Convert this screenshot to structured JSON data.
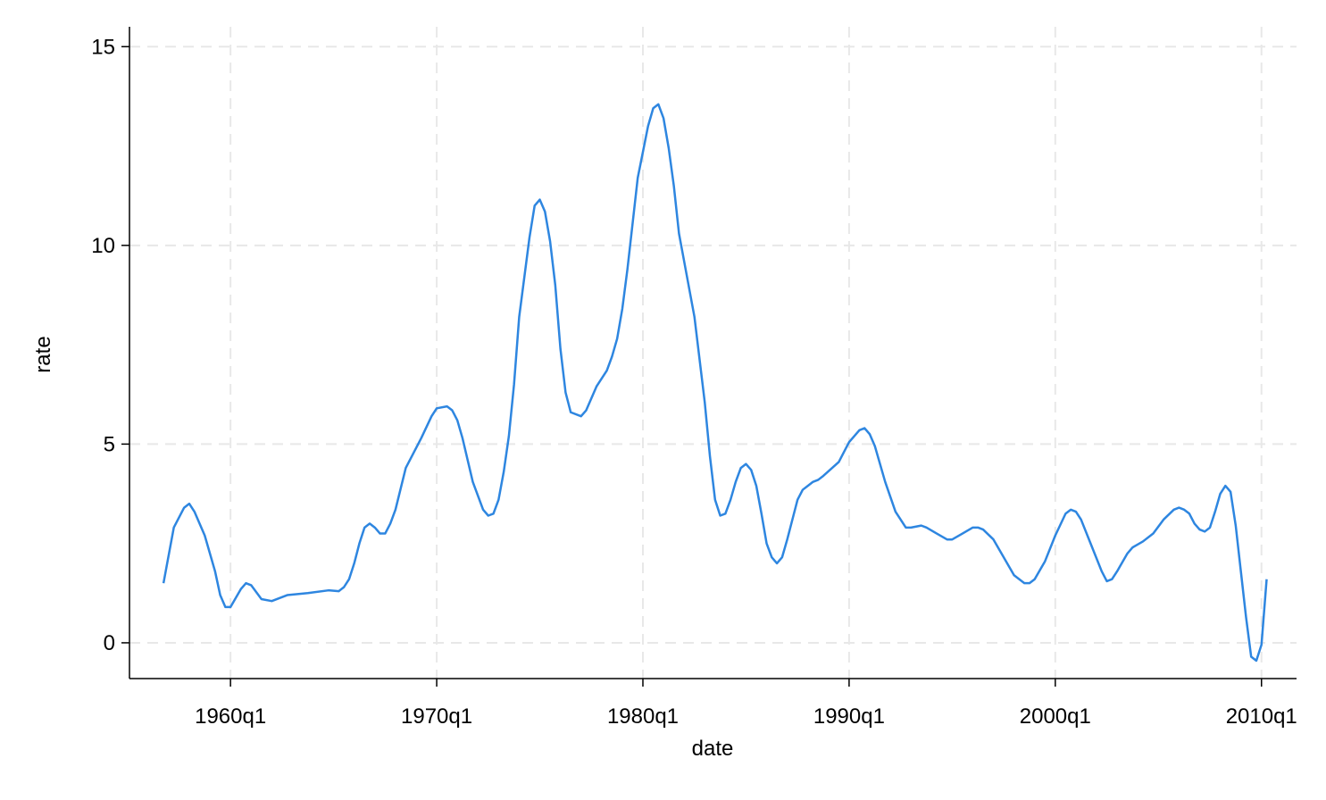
{
  "chart_data": {
    "type": "line",
    "xlabel": "date",
    "ylabel": "rate",
    "x": [
      1956.75,
      1957.25,
      1957.75,
      1958,
      1958.25,
      1958.75,
      1959.25,
      1959.5,
      1959.75,
      1960,
      1960.5,
      1960.75,
      1961,
      1961.5,
      1962,
      1962.75,
      1963.75,
      1964.75,
      1965.25,
      1965.5,
      1965.75,
      1966,
      1966.25,
      1966.5,
      1966.75,
      1967,
      1967.25,
      1967.5,
      1967.75,
      1968,
      1968.5,
      1969.25,
      1969.75,
      1970,
      1970.5,
      1970.75,
      1971,
      1971.25,
      1971.75,
      1972.25,
      1972.5,
      1972.75,
      1973,
      1973.25,
      1973.5,
      1973.75,
      1974,
      1974.5,
      1974.75,
      1975,
      1975.25,
      1975.5,
      1975.75,
      1976,
      1976.25,
      1976.5,
      1977,
      1977.25,
      1977.75,
      1978.25,
      1978.5,
      1978.75,
      1979,
      1979.25,
      1979.5,
      1979.75,
      1980,
      1980.25,
      1980.5,
      1980.75,
      1981,
      1981.25,
      1981.5,
      1981.75,
      1982.5,
      1983,
      1983.25,
      1983.5,
      1983.75,
      1984,
      1984.25,
      1984.5,
      1984.75,
      1985,
      1985.25,
      1985.5,
      1985.75,
      1986,
      1986.25,
      1986.5,
      1986.75,
      1987,
      1987.5,
      1987.75,
      1988,
      1988.25,
      1988.5,
      1988.75,
      1989.5,
      1990,
      1990.5,
      1990.75,
      1991,
      1991.25,
      1991.75,
      1992.25,
      1992.75,
      1993,
      1993.5,
      1993.75,
      1994.25,
      1994.75,
      1995,
      1995.5,
      1996,
      1996.25,
      1996.5,
      1997,
      1997.5,
      1998,
      1998.5,
      1998.75,
      1999,
      1999.5,
      2000,
      2000.5,
      2000.75,
      2001,
      2001.25,
      2001.75,
      2002.25,
      2002.5,
      2002.75,
      2003,
      2003.5,
      2003.75,
      2004.25,
      2004.75,
      2005.25,
      2005.75,
      2006,
      2006.25,
      2006.5,
      2006.75,
      2007,
      2007.25,
      2007.5,
      2007.75,
      2008,
      2008.25,
      2008.5,
      2008.75,
      2009,
      2009.25,
      2009.5,
      2009.75,
      2010,
      2010.25
    ],
    "series": [
      {
        "name": "rate",
        "color": "#2e86e0",
        "values": [
          1.5,
          2.9,
          3.4,
          3.5,
          3.3,
          2.7,
          1.8,
          1.2,
          0.9,
          0.9,
          1.35,
          1.5,
          1.45,
          1.1,
          1.05,
          1.2,
          1.25,
          1.32,
          1.3,
          1.4,
          1.6,
          2.0,
          2.5,
          2.9,
          3.0,
          2.9,
          2.75,
          2.75,
          3.0,
          3.35,
          4.4,
          5.15,
          5.7,
          5.9,
          5.95,
          5.85,
          5.6,
          5.15,
          4.05,
          3.35,
          3.2,
          3.25,
          3.6,
          4.3,
          5.2,
          6.5,
          8.2,
          10.2,
          11.0,
          11.15,
          10.85,
          10.1,
          9.0,
          7.4,
          6.3,
          5.8,
          5.7,
          5.85,
          6.45,
          6.85,
          7.2,
          7.65,
          8.4,
          9.4,
          10.55,
          11.7,
          12.35,
          13.0,
          13.45,
          13.55,
          13.2,
          12.45,
          11.5,
          10.3,
          8.2,
          6.05,
          4.7,
          3.6,
          3.2,
          3.25,
          3.6,
          4.05,
          4.4,
          4.5,
          4.35,
          3.95,
          3.25,
          2.5,
          2.15,
          2.0,
          2.15,
          2.6,
          3.6,
          3.85,
          3.95,
          4.05,
          4.1,
          4.2,
          4.55,
          5.05,
          5.35,
          5.4,
          5.25,
          4.95,
          4.05,
          3.3,
          2.9,
          2.9,
          2.95,
          2.9,
          2.75,
          2.6,
          2.6,
          2.75,
          2.9,
          2.9,
          2.85,
          2.6,
          2.15,
          1.7,
          1.5,
          1.5,
          1.6,
          2.05,
          2.7,
          3.25,
          3.35,
          3.3,
          3.1,
          2.45,
          1.8,
          1.55,
          1.6,
          1.8,
          2.25,
          2.4,
          2.55,
          2.75,
          3.1,
          3.35,
          3.4,
          3.35,
          3.25,
          3.0,
          2.85,
          2.8,
          2.9,
          3.3,
          3.75,
          3.95,
          3.8,
          2.95,
          1.8,
          0.65,
          -0.35,
          -0.45,
          -0.05,
          1.6
        ]
      }
    ],
    "xlim": [
      1955.1,
      2011.7
    ],
    "xticks": [
      {
        "value": 1960,
        "label": "1960q1"
      },
      {
        "value": 1970,
        "label": "1970q1"
      },
      {
        "value": 1980,
        "label": "1980q1"
      },
      {
        "value": 1990,
        "label": "1990q1"
      },
      {
        "value": 2000,
        "label": "2000q1"
      },
      {
        "value": 2010,
        "label": "2010q1"
      }
    ],
    "ylim": [
      -0.9,
      15.5
    ],
    "yticks": [
      0,
      5,
      10,
      15
    ],
    "grid": true
  }
}
